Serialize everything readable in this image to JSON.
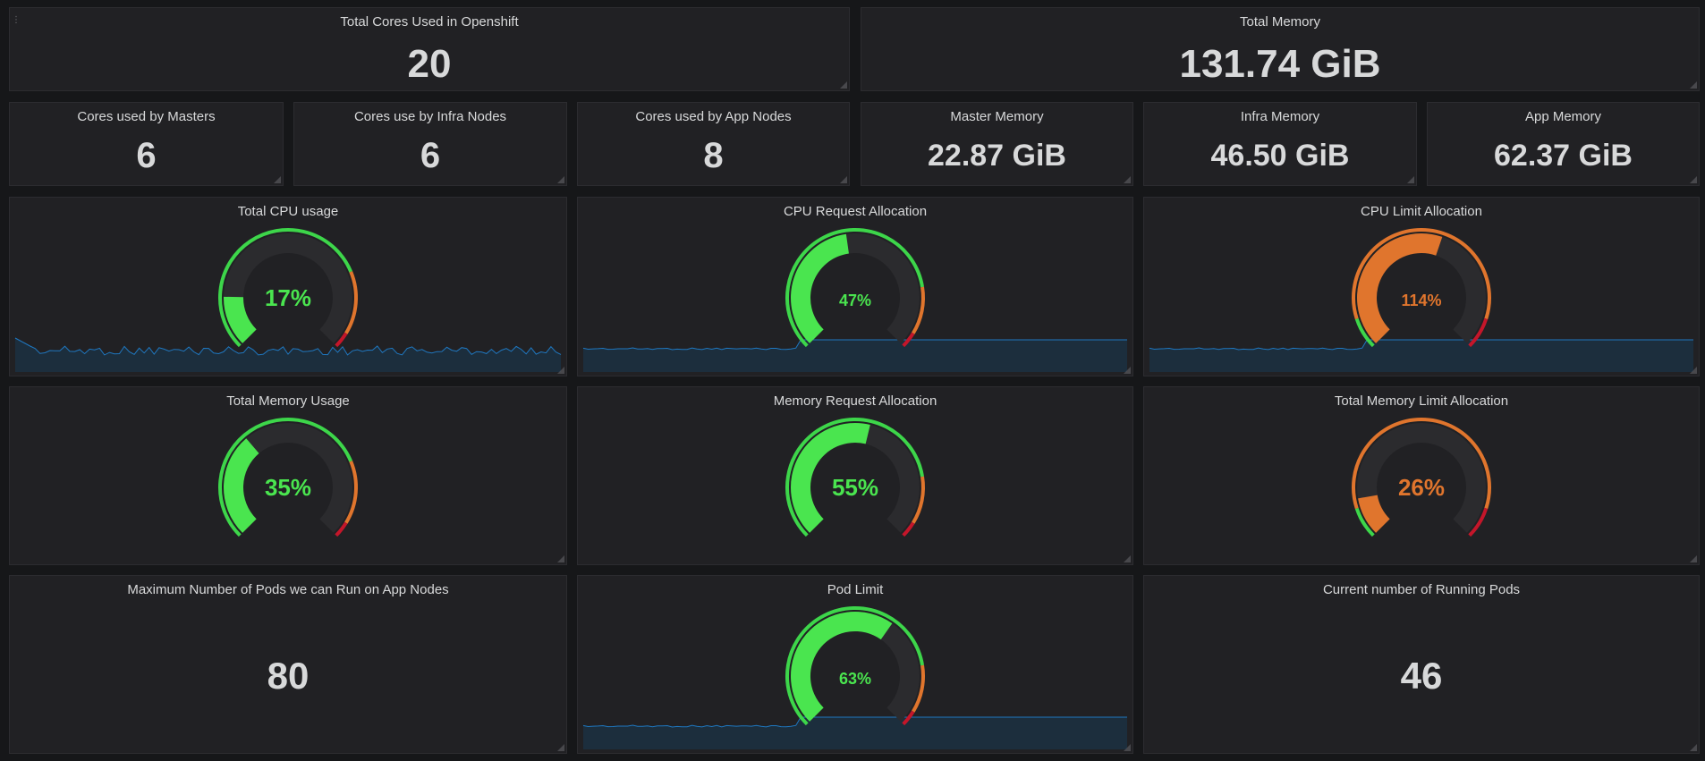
{
  "colors": {
    "green": "#3dd64a",
    "green_fill": "#4ae54f",
    "orange": "#e0752d",
    "red": "#c4162a",
    "track": "#2b2b2e",
    "spark_line": "#1f78c1",
    "spark_fill": "#1c2e3d",
    "text": "#d8d9da"
  },
  "stats": {
    "total_cores": {
      "title": "Total Cores Used in Openshift",
      "value": "20"
    },
    "total_memory": {
      "title": "Total Memory",
      "value": "131.74 GiB"
    },
    "masters_cores": {
      "title": "Cores used by Masters",
      "value": "6"
    },
    "infra_cores": {
      "title": "Cores use by Infra Nodes",
      "value": "6"
    },
    "app_cores": {
      "title": "Cores used by App Nodes",
      "value": "8"
    },
    "master_memory": {
      "title": "Master Memory",
      "value": "22.87 GiB"
    },
    "infra_memory": {
      "title": "Infra Memory",
      "value": "46.50 GiB"
    },
    "app_memory": {
      "title": "App Memory",
      "value": "62.37 GiB"
    },
    "max_pods": {
      "title": "Maximum Number of Pods we can Run on App Nodes",
      "value": "80"
    },
    "running_pods": {
      "title": "Current number of Running Pods",
      "value": "46"
    }
  },
  "gauges": {
    "cpu_usage": {
      "title": "Total CPU usage",
      "label": "17%",
      "value": 17,
      "thresholds": [
        75,
        95
      ],
      "sparkline": "noisy"
    },
    "cpu_request": {
      "title": "CPU Request Allocation",
      "label": "47%",
      "value": 47,
      "thresholds": [
        80,
        95
      ],
      "sparkline": "flat"
    },
    "cpu_limit": {
      "title": "CPU Limit Allocation",
      "label": "114%",
      "value": 114,
      "max": 200,
      "thresholds": [
        20,
        180
      ],
      "sparkline": "flat"
    },
    "mem_usage": {
      "title": "Total Memory Usage",
      "label": "35%",
      "value": 35,
      "thresholds": [
        75,
        95
      ],
      "sparkline": "none"
    },
    "mem_request": {
      "title": "Memory Request Allocation",
      "label": "55%",
      "value": 55,
      "thresholds": [
        80,
        95
      ],
      "sparkline": "none"
    },
    "mem_limit": {
      "title": "Total Memory Limit Allocation",
      "label": "26%",
      "value": 26,
      "max": 200,
      "thresholds": [
        20,
        180
      ],
      "sparkline": "none"
    },
    "pod_limit": {
      "title": "Pod Limit",
      "label": "63%",
      "value": 63,
      "thresholds": [
        80,
        95
      ],
      "sparkline": "flat"
    }
  }
}
